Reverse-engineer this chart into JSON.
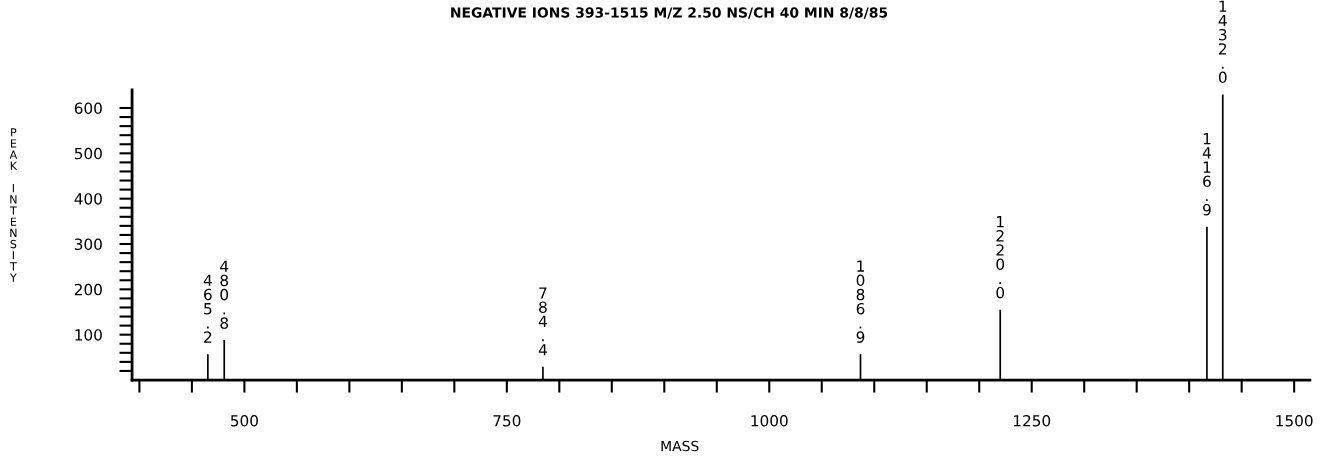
{
  "chart_data": {
    "type": "bar",
    "title": "NEGATIVE IONS 393-1515 M/Z 2.50 NS/CH 40 MIN 8/8/85",
    "xlabel": "MASS",
    "ylabel": "PEAK INTENSITY",
    "x": [
      465.2,
      480.8,
      784.4,
      1086.9,
      1220.0,
      1416.9,
      1432.0
    ],
    "values": [
      57,
      88,
      29,
      57,
      155,
      338,
      630
    ],
    "color": "#000000",
    "xlim": [
      393,
      1515
    ],
    "ylim": [
      0,
      640
    ],
    "xticks": [
      {
        "value": 400,
        "label": null
      },
      {
        "value": 450,
        "label": null
      },
      500,
      {
        "value": 550,
        "label": null
      },
      {
        "value": 600,
        "label": null
      },
      {
        "value": 650,
        "label": null
      },
      {
        "value": 700,
        "label": null
      },
      750,
      {
        "value": 800,
        "label": null
      },
      {
        "value": 850,
        "label": null
      },
      {
        "value": 900,
        "label": null
      },
      {
        "value": 950,
        "label": null
      },
      1000,
      {
        "value": 1050,
        "label": null
      },
      {
        "value": 1100,
        "label": null
      },
      {
        "value": 1150,
        "label": null
      },
      {
        "value": 1200,
        "label": null
      },
      1250,
      {
        "value": 1300,
        "label": null
      },
      {
        "value": 1350,
        "label": null
      },
      {
        "value": 1400,
        "label": null
      },
      {
        "value": 1450,
        "label": null
      },
      1500
    ],
    "yticks": [
      {
        "value": 20,
        "label": null
      },
      {
        "value": 40,
        "label": null
      },
      {
        "value": 60,
        "label": null
      },
      {
        "value": 80,
        "label": null
      },
      100,
      {
        "value": 120,
        "label": null
      },
      {
        "value": 140,
        "label": null
      },
      {
        "value": 160,
        "label": null
      },
      {
        "value": 180,
        "label": null
      },
      200,
      {
        "value": 220,
        "label": null
      },
      {
        "value": 240,
        "label": null
      },
      {
        "value": 260,
        "label": null
      },
      {
        "value": 280,
        "label": null
      },
      300,
      {
        "value": 320,
        "label": null
      },
      {
        "value": 340,
        "label": null
      },
      {
        "value": 360,
        "label": null
      },
      {
        "value": 380,
        "label": null
      },
      400,
      {
        "value": 420,
        "label": null
      },
      {
        "value": 440,
        "label": null
      },
      {
        "value": 460,
        "label": null
      },
      {
        "value": 480,
        "label": null
      },
      500,
      {
        "value": 520,
        "label": null
      },
      {
        "value": 540,
        "label": null
      },
      {
        "value": 560,
        "label": null
      },
      {
        "value": 580,
        "label": null
      },
      600
    ],
    "annotations": [
      {
        "text": "465.2",
        "x": 465.2,
        "y": 57
      },
      {
        "text": "480.8",
        "x": 480.8,
        "y": 88
      },
      {
        "text": "784.4",
        "x": 784.4,
        "y": 29
      },
      {
        "text": "1086.9",
        "x": 1086.9,
        "y": 57
      },
      {
        "text": "1220.0",
        "x": 1220.0,
        "y": 155
      },
      {
        "text": "1416.9",
        "x": 1416.9,
        "y": 338
      },
      {
        "text": "1432.0",
        "x": 1432.0,
        "y": 630
      }
    ]
  }
}
